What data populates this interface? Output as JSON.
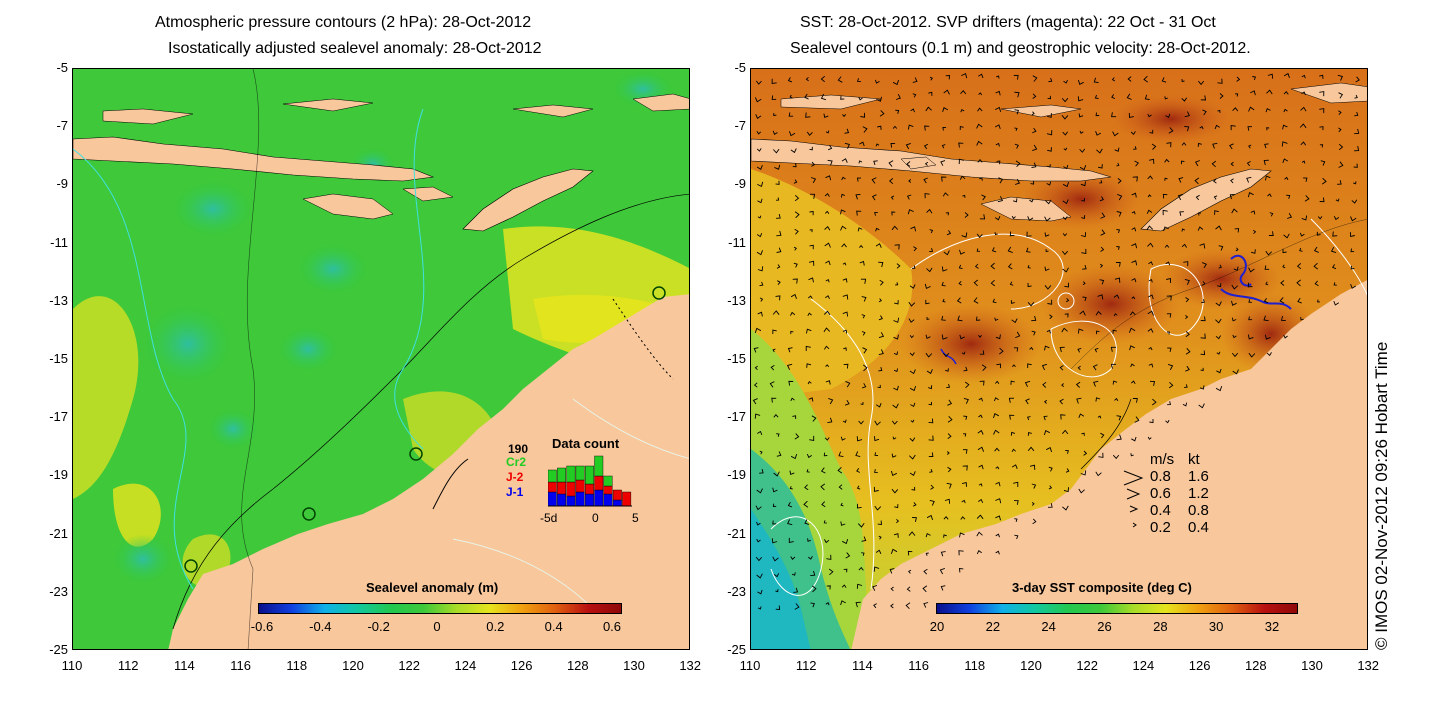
{
  "left_panel": {
    "title_line1": "Atmospheric pressure contours (2 hPa): 28-Oct-2012",
    "title_line2": "Isostatically adjusted sealevel anomaly: 28-Oct-2012",
    "colorbar": {
      "title": "Sealevel anomaly (m)",
      "ticks": [
        "-0.6",
        "-0.4",
        "-0.2",
        "0",
        "0.2",
        "0.4",
        "0.6"
      ]
    },
    "inset": {
      "count_label": "190",
      "sat_cr2": "Cr2",
      "sat_j2": "J-2",
      "sat_j1": "J-1",
      "title": "Data count",
      "xticks": [
        "-5d",
        "0",
        "5"
      ],
      "colors": {
        "cr2": "#22cc22",
        "j2": "#ee0000",
        "j1": "#0000ee"
      }
    }
  },
  "right_panel": {
    "title_line1": "SST: 28-Oct-2012. SVP drifters (magenta): 22 Oct - 31 Oct",
    "title_line2": "Sealevel contours (0.1 m) and geostrophic velocity: 28-Oct-2012.",
    "colorbar": {
      "title": "3-day SST composite (deg C)",
      "ticks": [
        "20",
        "22",
        "24",
        "26",
        "28",
        "30",
        "32"
      ]
    },
    "velocity_legend": {
      "header_ms": "m/s",
      "header_kt": "kt",
      "rows": [
        {
          "ms": "0.8",
          "kt": "1.6"
        },
        {
          "ms": "0.6",
          "kt": "1.2"
        },
        {
          "ms": "0.4",
          "kt": "0.8"
        },
        {
          "ms": "0.2",
          "kt": "0.4"
        }
      ]
    }
  },
  "axes": {
    "y_ticks": [
      "-5",
      "-7",
      "-9",
      "-11",
      "-13",
      "-15",
      "-17",
      "-19",
      "-21",
      "-23",
      "-25"
    ],
    "x_ticks": [
      "110",
      "112",
      "114",
      "116",
      "118",
      "120",
      "122",
      "124",
      "126",
      "128",
      "130",
      "132"
    ]
  },
  "copyright": "© IMOS 02-Nov-2012 09:26 Hobart Time",
  "colors": {
    "land": "#f8c79c",
    "ssh_low": "#1a8f5a",
    "ssh_mid": "#33cc33",
    "ssh_high": "#d8e820",
    "sst_warm": "#d06010",
    "sst_cool": "#20b8b0"
  }
}
